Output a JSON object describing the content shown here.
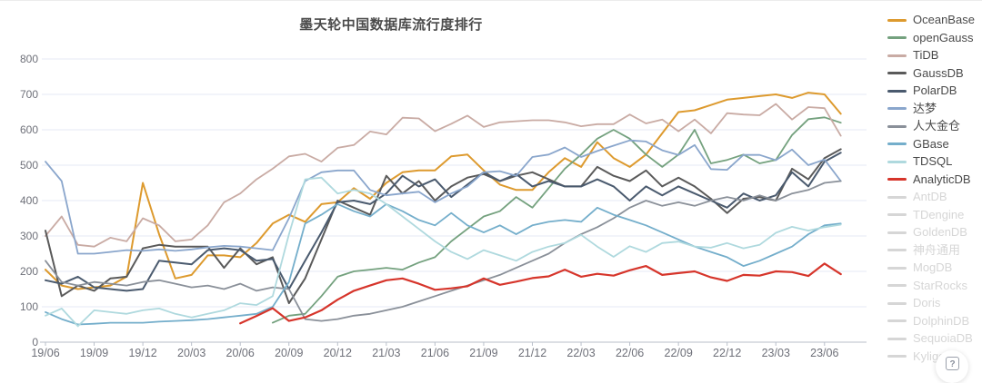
{
  "chart": {
    "title": "墨天轮中国数据库流行度排行"
  },
  "help_badge": {
    "glyph": "?"
  },
  "colors": {
    "grid": "#e4eaf5",
    "axis_line": "#b9bfca",
    "axis_text": "#6e7079",
    "legend_active_text": "#4a4a4a",
    "legend_inactive": "#d6d6d6"
  },
  "legend": {
    "items": [
      {
        "label": "OceanBase",
        "color": "#dd9a2e",
        "active": true
      },
      {
        "label": "openGauss",
        "color": "#74a17e",
        "active": true
      },
      {
        "label": "TiDB",
        "color": "#c9aba4",
        "active": true
      },
      {
        "label": "GaussDB",
        "color": "#5a5a5a",
        "active": true
      },
      {
        "label": "PolarDB",
        "color": "#4a5a6e",
        "active": true
      },
      {
        "label": "达梦",
        "color": "#8aa6cc",
        "active": true
      },
      {
        "label": "人大金仓",
        "color": "#8a9099",
        "active": true
      },
      {
        "label": "GBase",
        "color": "#74aecb",
        "active": true
      },
      {
        "label": "TDSQL",
        "color": "#afd9de",
        "active": true
      },
      {
        "label": "AnalyticDB",
        "color": "#d6352b",
        "active": true
      },
      {
        "label": "AntDB",
        "color": "#d6d6d6",
        "active": false
      },
      {
        "label": "TDengine",
        "color": "#d6d6d6",
        "active": false
      },
      {
        "label": "GoldenDB",
        "color": "#d6d6d6",
        "active": false
      },
      {
        "label": "神舟通用",
        "color": "#d6d6d6",
        "active": false
      },
      {
        "label": "MogDB",
        "color": "#d6d6d6",
        "active": false
      },
      {
        "label": "StarRocks",
        "color": "#d6d6d6",
        "active": false
      },
      {
        "label": "Doris",
        "color": "#d6d6d6",
        "active": false
      },
      {
        "label": "DolphinDB",
        "color": "#d6d6d6",
        "active": false
      },
      {
        "label": "SequoiaDB",
        "color": "#d6d6d6",
        "active": false
      },
      {
        "label": "Kyligence",
        "color": "#d6d6d6",
        "active": false
      }
    ]
  },
  "chart_data": {
    "type": "line",
    "title": "墨天轮中国数据库流行度排行",
    "xlabel": "",
    "ylabel": "",
    "ylim": [
      0,
      800
    ],
    "y_ticks": [
      800,
      700,
      600,
      500,
      400,
      300,
      200,
      100,
      0
    ],
    "x_tick_every": 3,
    "grid": true,
    "legend_position": "right",
    "x": [
      "19/06",
      "19/07",
      "19/08",
      "19/09",
      "19/10",
      "19/11",
      "19/12",
      "20/01",
      "20/02",
      "20/03",
      "20/04",
      "20/05",
      "20/06",
      "20/07",
      "20/08",
      "20/09",
      "20/10",
      "20/11",
      "20/12",
      "21/01",
      "21/02",
      "21/03",
      "21/04",
      "21/05",
      "21/06",
      "21/07",
      "21/08",
      "21/09",
      "21/10",
      "21/11",
      "21/12",
      "22/01",
      "22/02",
      "22/03",
      "22/04",
      "22/05",
      "22/06",
      "22/07",
      "22/08",
      "22/09",
      "22/10",
      "22/11",
      "22/12",
      "23/01",
      "23/02",
      "23/03",
      "23/04",
      "23/05",
      "23/06",
      "23/07"
    ],
    "series": [
      {
        "name": "OceanBase",
        "color": "#dd9a2e",
        "width": 2,
        "values": [
          205,
          160,
          150,
          155,
          160,
          185,
          450,
          305,
          180,
          190,
          245,
          245,
          240,
          280,
          335,
          360,
          340,
          390,
          395,
          435,
          405,
          450,
          480,
          485,
          485,
          525,
          530,
          485,
          445,
          430,
          430,
          480,
          520,
          495,
          565,
          520,
          495,
          530,
          590,
          650,
          655,
          670,
          685,
          690,
          695,
          700,
          690,
          705,
          700,
          645
        ]
      },
      {
        "name": "openGauss",
        "color": "#74a17e",
        "width": 1.8,
        "values": [
          null,
          null,
          null,
          null,
          null,
          null,
          null,
          null,
          null,
          null,
          null,
          null,
          null,
          null,
          55,
          75,
          80,
          130,
          185,
          200,
          205,
          210,
          205,
          225,
          240,
          285,
          320,
          355,
          370,
          410,
          380,
          435,
          490,
          530,
          575,
          600,
          575,
          530,
          495,
          530,
          600,
          505,
          515,
          530,
          505,
          515,
          585,
          630,
          635,
          620
        ]
      },
      {
        "name": "TiDB",
        "color": "#c9aba4",
        "width": 1.8,
        "values": [
          300,
          355,
          275,
          270,
          295,
          285,
          350,
          330,
          285,
          290,
          330,
          395,
          420,
          460,
          490,
          525,
          532,
          510,
          549,
          557,
          595,
          587,
          634,
          632,
          596,
          617,
          640,
          608,
          621,
          624,
          627,
          627,
          621,
          610,
          616,
          616,
          643,
          618,
          629,
          596,
          629,
          590,
          647,
          643,
          641,
          673,
          629,
          664,
          661,
          583
        ]
      },
      {
        "name": "GaussDB",
        "color": "#5a5a5a",
        "width": 2,
        "values": [
          315,
          130,
          160,
          145,
          180,
          185,
          265,
          275,
          270,
          270,
          270,
          210,
          265,
          220,
          240,
          110,
          180,
          290,
          400,
          380,
          360,
          470,
          420,
          455,
          400,
          440,
          465,
          475,
          455,
          470,
          480,
          460,
          440,
          440,
          495,
          470,
          455,
          485,
          440,
          465,
          440,
          405,
          365,
          405,
          410,
          400,
          490,
          460,
          520,
          545
        ]
      },
      {
        "name": "PolarDB",
        "color": "#4a5a6e",
        "width": 2,
        "values": [
          175,
          165,
          185,
          155,
          150,
          145,
          150,
          230,
          225,
          220,
          260,
          265,
          260,
          230,
          235,
          150,
          230,
          310,
          395,
          400,
          390,
          420,
          470,
          440,
          460,
          410,
          445,
          480,
          455,
          475,
          440,
          455,
          440,
          440,
          460,
          440,
          400,
          440,
          415,
          440,
          420,
          400,
          380,
          420,
          400,
          415,
          480,
          440,
          510,
          535
        ]
      },
      {
        "name": "达梦",
        "color": "#8aa6cc",
        "width": 1.8,
        "values": [
          510,
          455,
          250,
          250,
          255,
          260,
          258,
          262,
          258,
          262,
          268,
          272,
          270,
          265,
          260,
          350,
          455,
          480,
          485,
          485,
          430,
          415,
          420,
          425,
          395,
          420,
          440,
          480,
          483,
          470,
          523,
          530,
          550,
          523,
          540,
          555,
          570,
          567,
          542,
          529,
          557,
          489,
          487,
          529,
          529,
          514,
          544,
          500,
          516,
          455
        ]
      },
      {
        "name": "人大金仓",
        "color": "#8a9099",
        "width": 1.8,
        "values": [
          230,
          170,
          160,
          170,
          165,
          160,
          170,
          175,
          165,
          155,
          160,
          150,
          165,
          145,
          155,
          150,
          65,
          60,
          65,
          75,
          80,
          90,
          100,
          115,
          130,
          145,
          160,
          175,
          190,
          210,
          230,
          250,
          280,
          305,
          325,
          350,
          380,
          400,
          385,
          395,
          385,
          400,
          410,
          400,
          415,
          400,
          420,
          430,
          450,
          455
        ]
      },
      {
        "name": "GBase",
        "color": "#74aecb",
        "width": 1.8,
        "values": [
          85,
          65,
          50,
          52,
          55,
          55,
          55,
          58,
          60,
          62,
          65,
          70,
          75,
          80,
          100,
          170,
          335,
          360,
          390,
          370,
          355,
          390,
          370,
          345,
          330,
          365,
          330,
          310,
          330,
          305,
          330,
          340,
          345,
          340,
          380,
          360,
          345,
          330,
          310,
          290,
          270,
          255,
          240,
          215,
          230,
          250,
          270,
          305,
          330,
          335
        ]
      },
      {
        "name": "TDSQL",
        "color": "#afd9de",
        "width": 1.8,
        "values": [
          75,
          95,
          45,
          90,
          85,
          80,
          90,
          95,
          80,
          70,
          80,
          90,
          110,
          105,
          130,
          305,
          460,
          465,
          420,
          430,
          420,
          390,
          355,
          320,
          285,
          255,
          235,
          260,
          245,
          230,
          255,
          270,
          280,
          303,
          270,
          241,
          271,
          255,
          280,
          284,
          270,
          267,
          280,
          265,
          275,
          309,
          326,
          315,
          325,
          332
        ]
      },
      {
        "name": "AnalyticDB",
        "color": "#d6352b",
        "width": 2.2,
        "values": [
          null,
          null,
          null,
          null,
          null,
          null,
          null,
          null,
          null,
          null,
          null,
          null,
          53,
          74,
          96,
          60,
          70,
          90,
          120,
          145,
          160,
          175,
          180,
          165,
          148,
          152,
          158,
          180,
          162,
          171,
          181,
          186,
          205,
          185,
          193,
          188,
          203,
          215,
          190,
          195,
          200,
          183,
          173,
          190,
          188,
          200,
          198,
          187,
          222,
          192
        ]
      }
    ]
  }
}
